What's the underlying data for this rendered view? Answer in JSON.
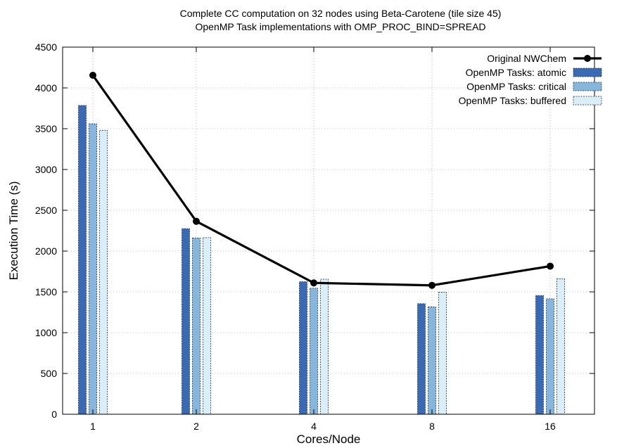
{
  "chart_data": {
    "type": "bar",
    "title": "Complete CC computation on 32 nodes using Beta-Carotene (tile size 45)",
    "subtitle": "OpenMP Task implementations with OMP_PROC_BIND=SPREAD",
    "xlabel": "Cores/Node",
    "ylabel": "Execution Time (s)",
    "categories": [
      "1",
      "2",
      "4",
      "8",
      "16"
    ],
    "ylim": [
      0,
      4500
    ],
    "yticks": [
      0,
      500,
      1000,
      1500,
      2000,
      2500,
      3000,
      3500,
      4000,
      4500
    ],
    "grid": true,
    "legend_position": "top-right",
    "series": [
      {
        "name": "Original NWChem",
        "kind": "line",
        "color": "#000000",
        "values": [
          4155,
          2365,
          1610,
          1580,
          1815
        ]
      },
      {
        "name": "OpenMP Tasks: atomic",
        "kind": "bar",
        "color": "#3a6ab3",
        "values": [
          3785,
          2275,
          1625,
          1355,
          1455
        ]
      },
      {
        "name": "OpenMP Tasks: critical",
        "kind": "bar",
        "color": "#86b6dc",
        "values": [
          3560,
          2160,
          1545,
          1315,
          1415
        ]
      },
      {
        "name": "OpenMP Tasks: buffered",
        "kind": "bar",
        "color": "#d9eef7",
        "values": [
          3480,
          2165,
          1655,
          1495,
          1660
        ]
      }
    ]
  }
}
